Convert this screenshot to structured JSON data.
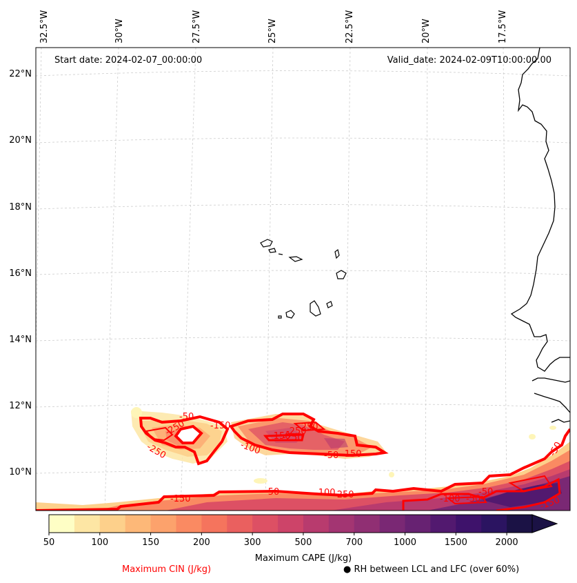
{
  "map": {
    "start_date": "Start date: 2024-02-07_00:00:00",
    "valid_date": "Valid_date: 2024-02-09T10:00:00.00",
    "lon_labels": [
      "32.5°W",
      "30°W",
      "27.5°W",
      "25°W",
      "22.5°W",
      "20°W",
      "17.5°W"
    ],
    "lat_labels": [
      "22°N",
      "20°N",
      "18°N",
      "16°N",
      "14°N",
      "12°N",
      "10°N"
    ],
    "contour_labels": [
      "-50",
      "-150",
      "-250",
      "-250",
      "-150",
      "-250",
      "-250",
      "-100",
      "-50",
      "-250",
      "-50",
      "-150",
      "-150",
      "-50",
      "-100",
      "-250",
      "-100",
      "-50",
      "-150",
      "-50"
    ]
  },
  "colorbar": {
    "ticks": [
      "50",
      "100",
      "150",
      "200",
      "300",
      "500",
      "700",
      "1000",
      "1500",
      "2000"
    ],
    "colors": [
      "#fefec5",
      "#fde6a4",
      "#fdd08b",
      "#fdb878",
      "#fca26c",
      "#fa8a62",
      "#f5745d",
      "#ea605f",
      "#dd5064",
      "#cd4469",
      "#b83b6e",
      "#a33572",
      "#902f73",
      "#7a2874",
      "#672272",
      "#52196f",
      "#3e126b",
      "#2b1461",
      "#1b1245"
    ],
    "label": "Maximum CAPE (J/kg)"
  },
  "legend": {
    "cin_label": "Maximum CIN (J/kg)",
    "cin_color": "#ff0000",
    "rh_label": "● RH between LCL and LFC (over 60%)"
  }
}
